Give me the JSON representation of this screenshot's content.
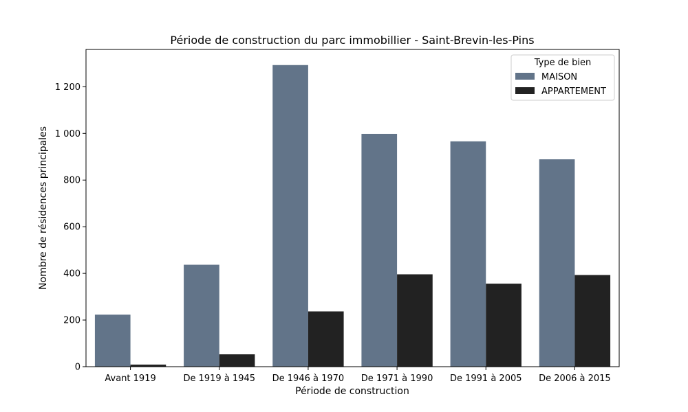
{
  "chart_data": {
    "type": "bar",
    "title": "Période de construction du parc immobillier - Saint-Brevin-les-Pins",
    "xlabel": "Période de construction",
    "ylabel": "Nombre de résidences principales",
    "categories": [
      "Avant 1919",
      "De 1919 à 1945",
      "De 1946 à 1970",
      "De 1971 à 1990",
      "De 1991 à 2005",
      "De 2006 à 2015"
    ],
    "series": [
      {
        "name": "MAISON",
        "color": "#627489",
        "values": [
          223,
          437,
          1293,
          998,
          966,
          889
        ]
      },
      {
        "name": "APPARTEMENT",
        "color": "#222222",
        "values": [
          9,
          53,
          237,
          396,
          356,
          393
        ]
      }
    ],
    "ylim": [
      0,
      1360
    ],
    "yticks": [
      0,
      200,
      400,
      600,
      800,
      1000,
      1200
    ],
    "ytick_labels": [
      "0",
      "200",
      "400",
      "600",
      "800",
      "1 000",
      "1 200"
    ],
    "legend_title": "Type de bien",
    "legend_position": "top-right",
    "grid": false
  }
}
